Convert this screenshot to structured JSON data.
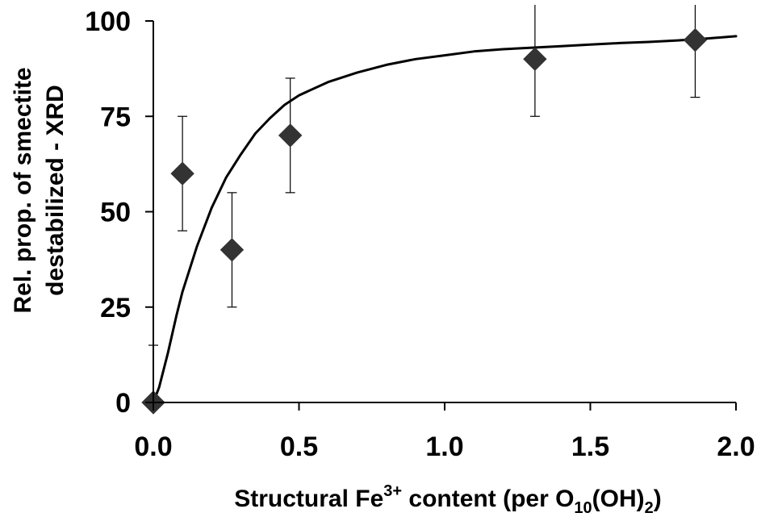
{
  "chart_data": {
    "type": "scatter",
    "xlabel": {
      "prefix": "Structural Fe",
      "superscript": "3+",
      "middle": " content (per O",
      "subscript1": "10",
      "middle2": "(OH)",
      "subscript2": "2",
      "suffix": ")"
    },
    "ylabel": {
      "line1": "Rel. prop. of smectite",
      "line2": "destabilized - XRD"
    },
    "xlim": [
      0.0,
      2.0
    ],
    "ylim": [
      0,
      100
    ],
    "x_ticks": [
      0.0,
      0.5,
      1.0,
      1.5,
      2.0
    ],
    "x_tick_labels": [
      "0.0",
      "0.5",
      "1.0",
      "1.5",
      "2.0"
    ],
    "y_ticks": [
      0,
      25,
      50,
      75,
      100
    ],
    "y_tick_labels": [
      "0",
      "25",
      "50",
      "75",
      "100"
    ],
    "grid": false,
    "legend": "none",
    "marker": "diamond",
    "colors": {
      "marker": "#333333",
      "line": "#000000",
      "axis": "#000000"
    },
    "points": [
      {
        "x": 0.0,
        "y": 0,
        "err": 15
      },
      {
        "x": 0.1,
        "y": 60,
        "err": 15
      },
      {
        "x": 0.27,
        "y": 40,
        "err": 15
      },
      {
        "x": 0.47,
        "y": 70,
        "err": 15
      },
      {
        "x": 1.31,
        "y": 90,
        "err": 15
      },
      {
        "x": 1.86,
        "y": 95,
        "err": 15
      }
    ],
    "curve": {
      "x": [
        0.0,
        0.02,
        0.05,
        0.08,
        0.1,
        0.15,
        0.2,
        0.25,
        0.3,
        0.35,
        0.4,
        0.45,
        0.5,
        0.6,
        0.7,
        0.8,
        0.9,
        1.0,
        1.1,
        1.2,
        1.3,
        1.4,
        1.5,
        1.6,
        1.7,
        1.8,
        1.9,
        2.0
      ],
      "y": [
        0,
        4,
        13,
        23,
        29,
        41,
        51,
        59,
        65,
        70.5,
        74.5,
        78,
        80.5,
        84,
        86.5,
        88.5,
        90,
        91,
        92,
        92.6,
        93,
        93.4,
        93.8,
        94.2,
        94.5,
        94.9,
        95.4,
        96
      ]
    }
  }
}
